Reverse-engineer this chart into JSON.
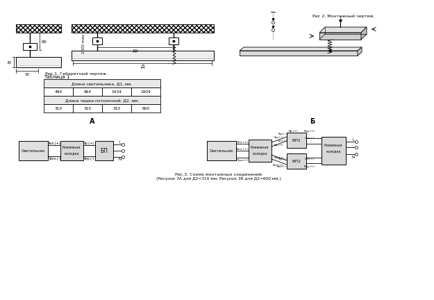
{
  "bg_color": "#ffffff",
  "fig1_label": "Рис.1. Габаритный чертеж.",
  "fig2_label": "Рис 2. Монтажный чертеж.",
  "fig3_label_line1": "Рис.3. Схема монтажных соединений.",
  "fig3_label_line2": "(Рисунок 3А для Д2=310 мм; Рисунок 3Б для Д2=600 мм.)",
  "table_title": "Таблица 1",
  "table_col1_header": "Длина светильника, Д1, мм.",
  "table_col2_header": "Длина чашки потолочной, Д2, мм.",
  "table_d1_vals": [
    "494",
    "964",
    "1434",
    "1904"
  ],
  "table_d2_vals": [
    "310",
    "310",
    "310",
    "600"
  ],
  "schemeA_label": "А",
  "schemeB_label": "Б",
  "dim_60": "60",
  "dim_30a": "30",
  "dim_30b": "30",
  "dim_2000": "2000 max",
  "dim_D2": "Д2",
  "dim_D": "Д",
  "label_L": "L",
  "label_N": "N",
  "label_svetilnik": "Светильник",
  "label_klemm": "Клеммная\nколодка",
  "label_BP": "БП",
  "label_BP1": "БП1",
  "label_BP2": "БП2",
  "wire_zel_plus": "Зел.(+)",
  "wire_proz_minus": "Проз.(-)",
  "wire_kr_plus": "Кр.(+)",
  "wire_cher_minus": "Чер.(-)",
  "wire_bel_plus": "Бел.(+)",
  "wire_kor_plus": "Кор.(+)",
  "wire_sin_minus": "Син.(-)"
}
